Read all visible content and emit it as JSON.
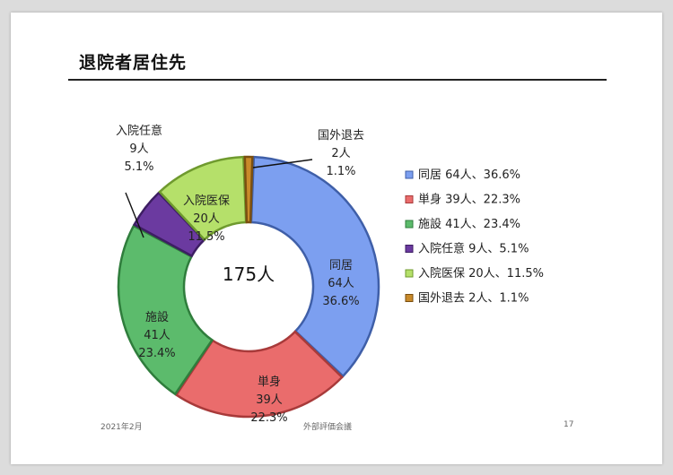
{
  "slide": {
    "title": "退院者居住先",
    "footer_left": "2021年2月",
    "footer_center": "外部評価会議",
    "footer_right": "17"
  },
  "chart_data": {
    "type": "pie",
    "donut": true,
    "center_label": "175人",
    "total": 175,
    "legend_position": "right",
    "series": [
      {
        "name": "同居",
        "count_label": "64人",
        "percent_label": "36.6%",
        "value": 36.6,
        "color": "#7c9ff0",
        "edge": "#3f5fa8"
      },
      {
        "name": "単身",
        "count_label": "39人",
        "percent_label": "22.3%",
        "value": 22.3,
        "color": "#ea6c6c",
        "edge": "#a83a3a"
      },
      {
        "name": "施設",
        "count_label": "41人",
        "percent_label": "23.4%",
        "value": 23.4,
        "color": "#5cbb6c",
        "edge": "#2f7d3c"
      },
      {
        "name": "入院任意",
        "count_label": "9人",
        "percent_label": "5.1%",
        "value": 5.1,
        "color": "#6b3aa0",
        "edge": "#3d1e63"
      },
      {
        "name": "入院医保",
        "count_label": "20人",
        "percent_label": "11.5%",
        "value": 11.5,
        "color": "#b5e06a",
        "edge": "#6f9a2e"
      },
      {
        "name": "国外退去",
        "count_label": "2人",
        "percent_label": "1.1%",
        "value": 1.1,
        "color": "#c98a2a",
        "edge": "#7a4f10"
      }
    ],
    "legend_items": [
      "同居 64人、36.6%",
      "単身 39人、22.3%",
      "施設 41人、23.4%",
      "入院任意 9人、5.1%",
      "入院医保 20人、11.5%",
      "国外退去 2人、1.1%"
    ]
  }
}
